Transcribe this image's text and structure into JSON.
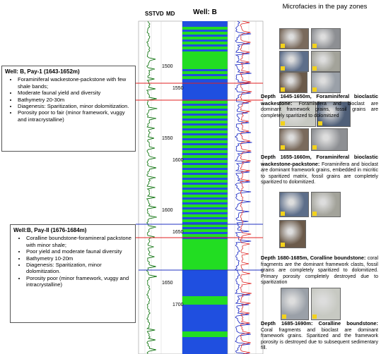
{
  "log": {
    "headers": {
      "sstvd": "SSTVD",
      "md": "MD",
      "well": "Well: B"
    },
    "sstvd_ticks": [
      "1500",
      "1550",
      "1600",
      "1650"
    ],
    "md_ticks": [
      "1550",
      "1600",
      "1650",
      "1700"
    ]
  },
  "pay_zones": [
    {
      "title": "Well: B, Pay-1 (1643-1652m)",
      "bullets": [
        "Foraminiferal wackestone-packstone with few shale bands;",
        "Moderate faunal yield and diversity",
        "Bathymetry 20-30m",
        "Diagenesis: Sparitization, minor dolomitization.",
        "Porosity poor to fair (minor framework, vuggy and intracrystalline)"
      ]
    },
    {
      "title": "Well:B, Pay-II (1676-1684m)",
      "bullets": [
        "Coralline boundstone-foramineral packstone with minor shale;",
        "Poor yield and moderate faunal diversity",
        "Bathymetry 10-20m",
        "Diagenesis: Sparitization, minor dolomitization.",
        "Porosity poor (minor framework, vuggy and intracrystalline)"
      ]
    }
  ],
  "microfacies": {
    "title": "Microfacies in the pay zones",
    "descriptions": [
      {
        "heading": "Depth 1645-1650m, Foraminiferal bioclastic wackestone:",
        "text": "Foraminifera and bioclast are dominant framework grains, fossil grains are completely sparitized to dolomitized"
      },
      {
        "heading": "Depth 1655-1660m, Foraminiferal bioclastic wackestone-packstone:",
        "text": "Foraminifera and bioclast are dominant framework grains, embedded in micritic to sparitized matrix, fossil grains are completely sparitized to dolomitized."
      },
      {
        "heading": "Depth 1680-1685m, Coralline boundstone:",
        "text": "coral fragments are the dominant framework clasts, fossil grains are completely sparitized to dolomitized. Primary porosity completely destroyed due to sparitization"
      },
      {
        "heading": "Depth 1685-1690m: Coralline boundstone:",
        "text": "Coral fragments and bioclast are dominant framework grains. Sparitized and the framework porosity is destroyed due to subsequent sedimentary fill."
      }
    ]
  }
}
